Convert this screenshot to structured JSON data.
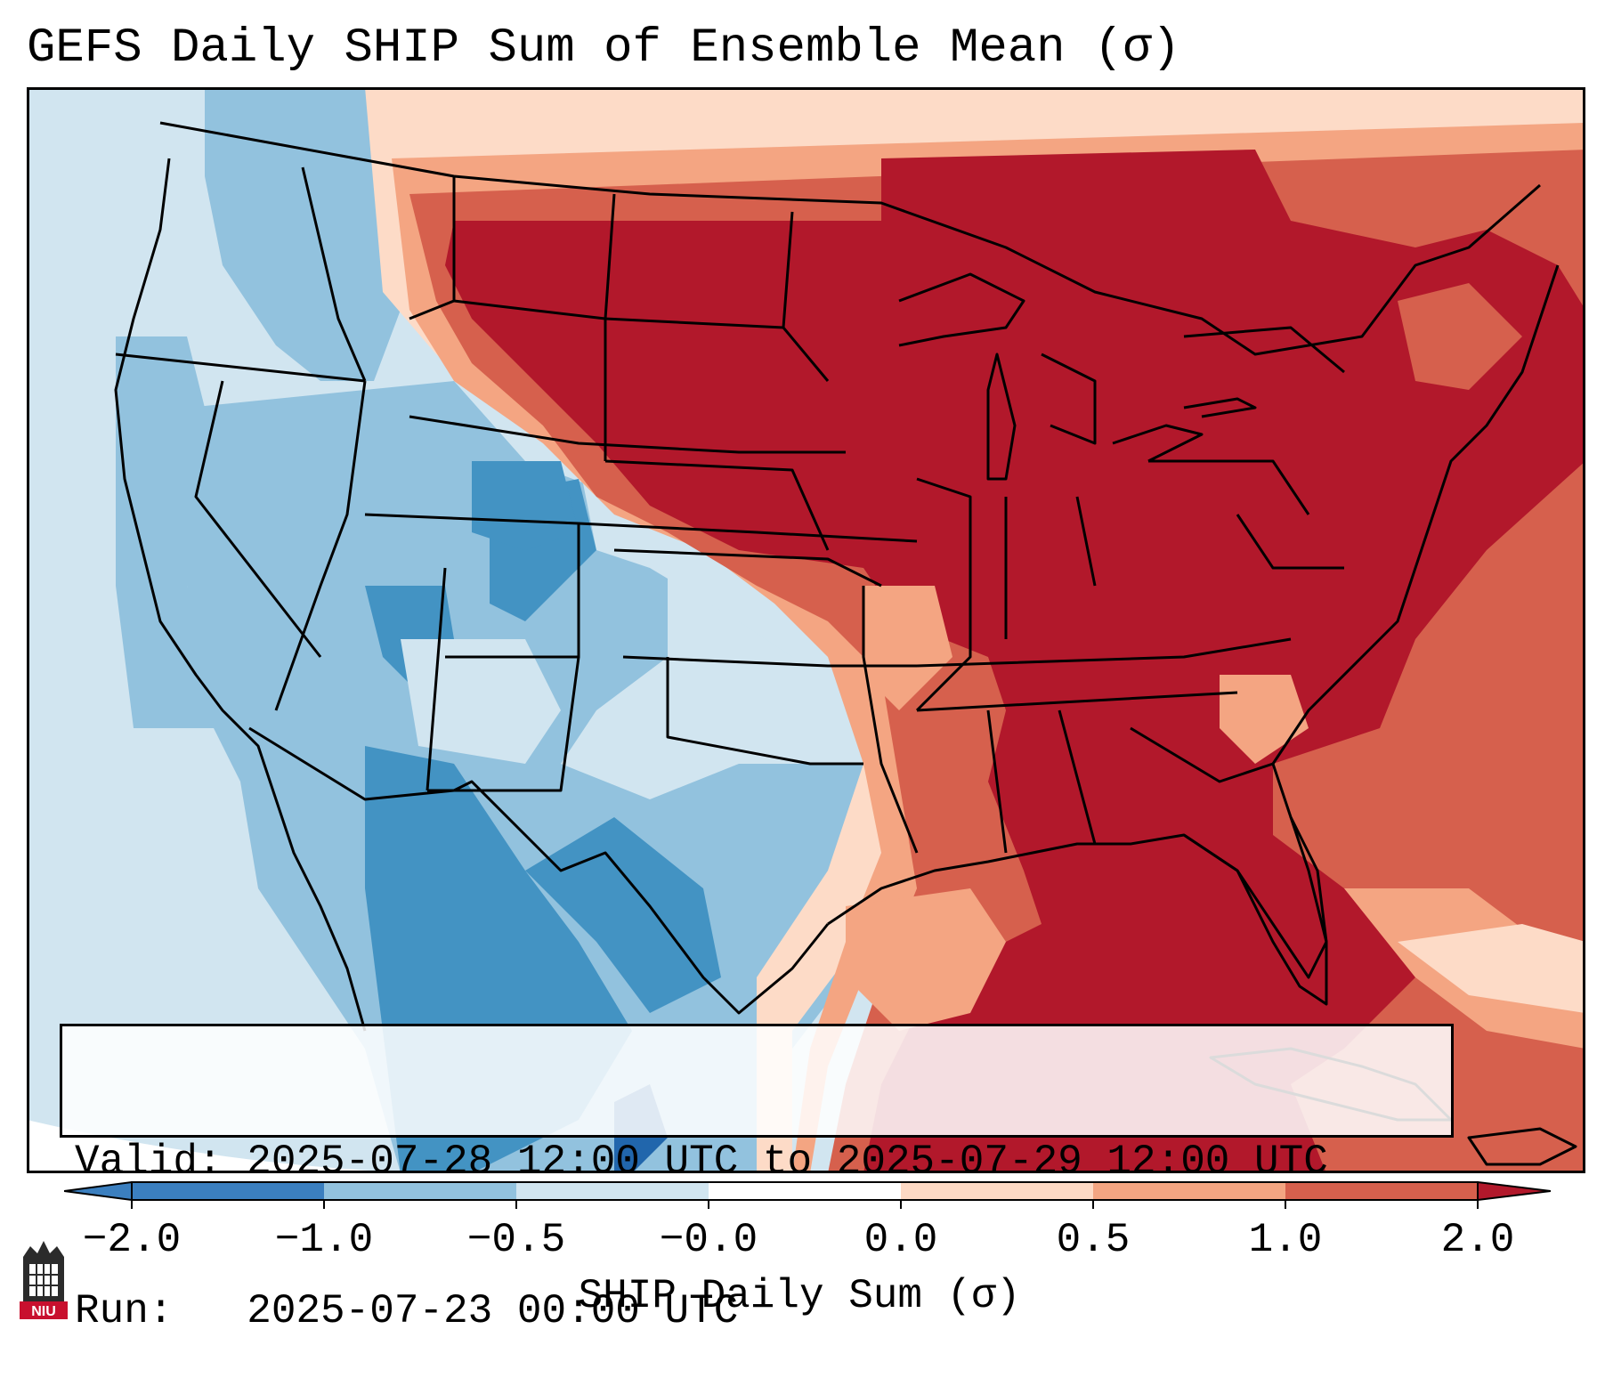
{
  "title": "GEFS Daily SHIP Sum of Ensemble Mean (σ)",
  "info": {
    "valid_line": "Valid: 2025-07-28 12:00 UTC to 2025-07-29 12:00 UTC",
    "run_line": "Run:   2025-07-23 00:00 UTC"
  },
  "colorbar": {
    "label": "SHIP Daily Sum (σ)",
    "tick_labels": [
      "−2.0",
      "−1.0",
      "−0.5",
      "−0.0",
      "0.0",
      "0.5",
      "1.0",
      "2.0"
    ],
    "colors": [
      "#3b7fbf",
      "#92c2de",
      "#d1e5f0",
      "#ffffff",
      "#fdd9c4",
      "#f3a582",
      "#d6604d",
      "#b2182b"
    ],
    "extend": "both"
  },
  "map_colors": {
    "ocean_light": "#d1e5f0",
    "light_blue": "#92c2de",
    "mid_blue": "#4393c3",
    "deep_blue": "#2166ac",
    "peach": "#fddbc7",
    "salmon": "#f4a582",
    "coral": "#d6604d",
    "dark_red": "#b2182b",
    "border": "#000000"
  },
  "logo": {
    "text": "NIU",
    "color": "#c8102e"
  }
}
